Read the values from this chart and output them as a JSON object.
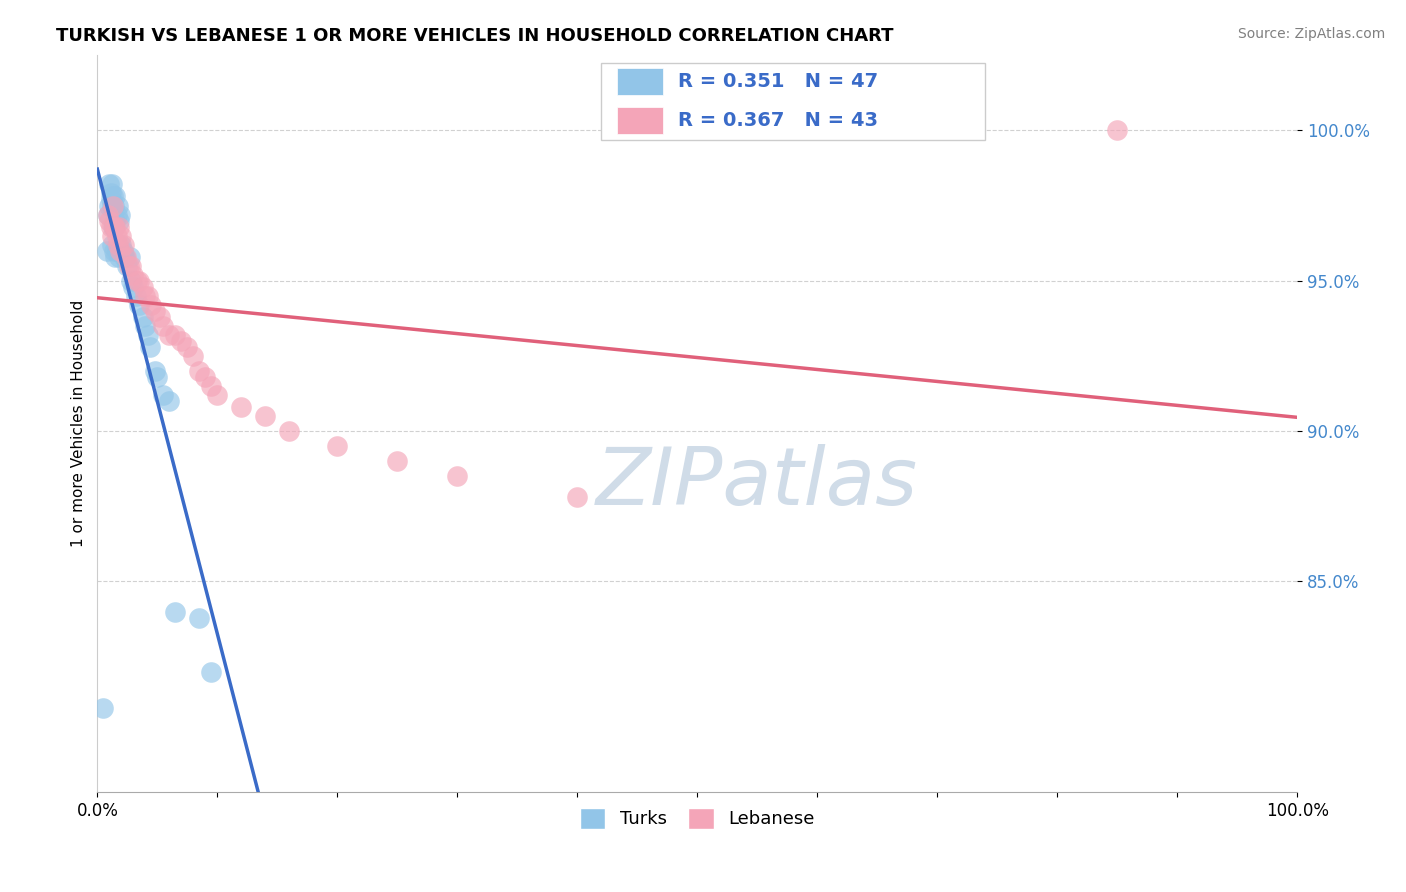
{
  "title": "TURKISH VS LEBANESE 1 OR MORE VEHICLES IN HOUSEHOLD CORRELATION CHART",
  "source": "Source: ZipAtlas.com",
  "ylabel": "1 or more Vehicles in Household",
  "xlim": [
    0.0,
    1.0
  ],
  "ylim": [
    0.78,
    1.025
  ],
  "ytick_positions": [
    0.85,
    0.9,
    0.95,
    1.0
  ],
  "ytick_labels": [
    "85.0%",
    "90.0%",
    "95.0%",
    "100.0%"
  ],
  "xtick_positions": [
    0.0,
    0.1,
    0.2,
    0.3,
    0.4,
    0.5,
    0.6,
    0.7,
    0.8,
    0.9,
    1.0
  ],
  "xtick_labels": [
    "0.0%",
    "",
    "",
    "",
    "",
    "",
    "",
    "",
    "",
    "",
    "100.0%"
  ],
  "legend_r_blue": "R = 0.351",
  "legend_n_blue": "N = 47",
  "legend_r_pink": "R = 0.367",
  "legend_n_pink": "N = 43",
  "turks_color": "#92c5e8",
  "lebanese_color": "#f4a5b8",
  "trend_blue": "#3a6bc8",
  "trend_pink": "#e0607a",
  "ytick_color": "#4488cc",
  "watermark_color": "#d0dce8",
  "turks_x": [
    0.005,
    0.008,
    0.009,
    0.01,
    0.01,
    0.011,
    0.011,
    0.012,
    0.012,
    0.012,
    0.013,
    0.013,
    0.014,
    0.014,
    0.014,
    0.015,
    0.015,
    0.015,
    0.016,
    0.016,
    0.017,
    0.017,
    0.018,
    0.018,
    0.019,
    0.019,
    0.02,
    0.021,
    0.022,
    0.023,
    0.025,
    0.027,
    0.028,
    0.03,
    0.032,
    0.035,
    0.038,
    0.04,
    0.042,
    0.044,
    0.048,
    0.05,
    0.055,
    0.06,
    0.065,
    0.085,
    0.095
  ],
  "turks_y": [
    0.808,
    0.96,
    0.972,
    0.982,
    0.975,
    0.979,
    0.977,
    0.982,
    0.975,
    0.962,
    0.978,
    0.968,
    0.975,
    0.968,
    0.96,
    0.978,
    0.97,
    0.958,
    0.972,
    0.96,
    0.975,
    0.96,
    0.97,
    0.958,
    0.972,
    0.96,
    0.962,
    0.96,
    0.958,
    0.958,
    0.955,
    0.958,
    0.95,
    0.948,
    0.945,
    0.942,
    0.938,
    0.935,
    0.932,
    0.928,
    0.92,
    0.918,
    0.912,
    0.91,
    0.84,
    0.838,
    0.82
  ],
  "lebanese_x": [
    0.009,
    0.01,
    0.011,
    0.012,
    0.013,
    0.014,
    0.015,
    0.016,
    0.017,
    0.018,
    0.019,
    0.02,
    0.022,
    0.024,
    0.026,
    0.028,
    0.03,
    0.033,
    0.035,
    0.038,
    0.04,
    0.042,
    0.045,
    0.048,
    0.052,
    0.055,
    0.06,
    0.065,
    0.07,
    0.075,
    0.08,
    0.085,
    0.09,
    0.095,
    0.1,
    0.12,
    0.14,
    0.16,
    0.2,
    0.25,
    0.3,
    0.4,
    0.85
  ],
  "lebanese_y": [
    0.972,
    0.97,
    0.968,
    0.965,
    0.975,
    0.968,
    0.968,
    0.965,
    0.962,
    0.968,
    0.96,
    0.965,
    0.962,
    0.958,
    0.955,
    0.955,
    0.952,
    0.95,
    0.95,
    0.948,
    0.945,
    0.945,
    0.942,
    0.94,
    0.938,
    0.935,
    0.932,
    0.932,
    0.93,
    0.928,
    0.925,
    0.92,
    0.918,
    0.915,
    0.912,
    0.908,
    0.905,
    0.9,
    0.895,
    0.89,
    0.885,
    0.878,
    1.0
  ]
}
